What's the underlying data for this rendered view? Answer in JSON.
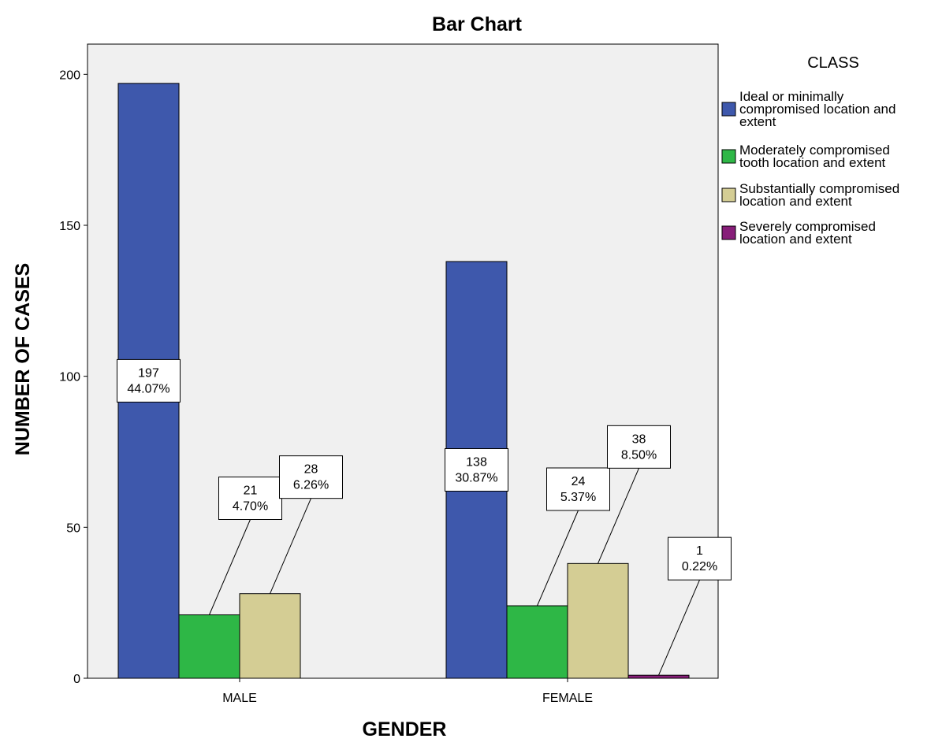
{
  "chart_data": {
    "type": "bar",
    "title": "Bar Chart",
    "xlabel": "GENDER",
    "ylabel": "NUMBER OF CASES",
    "categories": [
      "MALE",
      "FEMALE"
    ],
    "ylim": [
      0,
      210
    ],
    "yticks": [
      0,
      50,
      100,
      150,
      200
    ],
    "grid": false,
    "legend": {
      "title": "CLASS",
      "placement": "right"
    },
    "series": [
      {
        "name": "Ideal or minimally compromised location and extent",
        "color": "#3e58ac",
        "values": [
          197,
          138
        ],
        "labels": [
          "44.07%",
          "30.87%"
        ]
      },
      {
        "name": "Moderately compromised tooth location and extent",
        "color": "#2eb746",
        "values": [
          21,
          24
        ],
        "labels": [
          "4.70%",
          "5.37%"
        ]
      },
      {
        "name": "Substantially compromised location and extent",
        "color": "#d4cd94",
        "values": [
          28,
          38
        ],
        "labels": [
          "6.26%",
          "8.50%"
        ]
      },
      {
        "name": "Severely compromised location and extent",
        "color": "#871e79",
        "values": [
          0,
          1
        ],
        "labels": [
          "",
          "0.22%"
        ]
      }
    ],
    "background": "#f0f0f0"
  }
}
